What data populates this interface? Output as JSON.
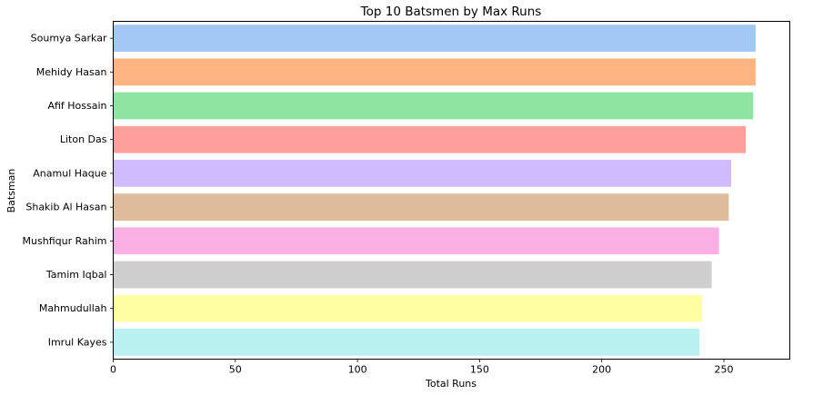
{
  "chart_data": {
    "type": "bar",
    "orientation": "horizontal",
    "title": "Top 10 Batsmen by Max Runs",
    "xlabel": "Total Runs",
    "ylabel": "Batsman",
    "xlim": [
      0,
      277
    ],
    "xticks": [
      0,
      50,
      100,
      150,
      200,
      250
    ],
    "grid": false,
    "categories": [
      "Soumya Sarkar",
      "Mehidy Hasan",
      "Afif Hossain",
      "Liton Das",
      "Anamul Haque",
      "Shakib Al Hasan",
      "Mushfiqur Rahim",
      "Tamim Iqbal",
      "Mahmudullah",
      "Imrul Kayes"
    ],
    "values": [
      263,
      263,
      262,
      259,
      253,
      252,
      248,
      245,
      241,
      240
    ],
    "colors": [
      "#a1c9f4",
      "#ffb482",
      "#8de5a1",
      "#ff9f9b",
      "#d0bbff",
      "#debb9b",
      "#fab0e4",
      "#cfcfcf",
      "#fffea3",
      "#b9f2f0"
    ]
  }
}
